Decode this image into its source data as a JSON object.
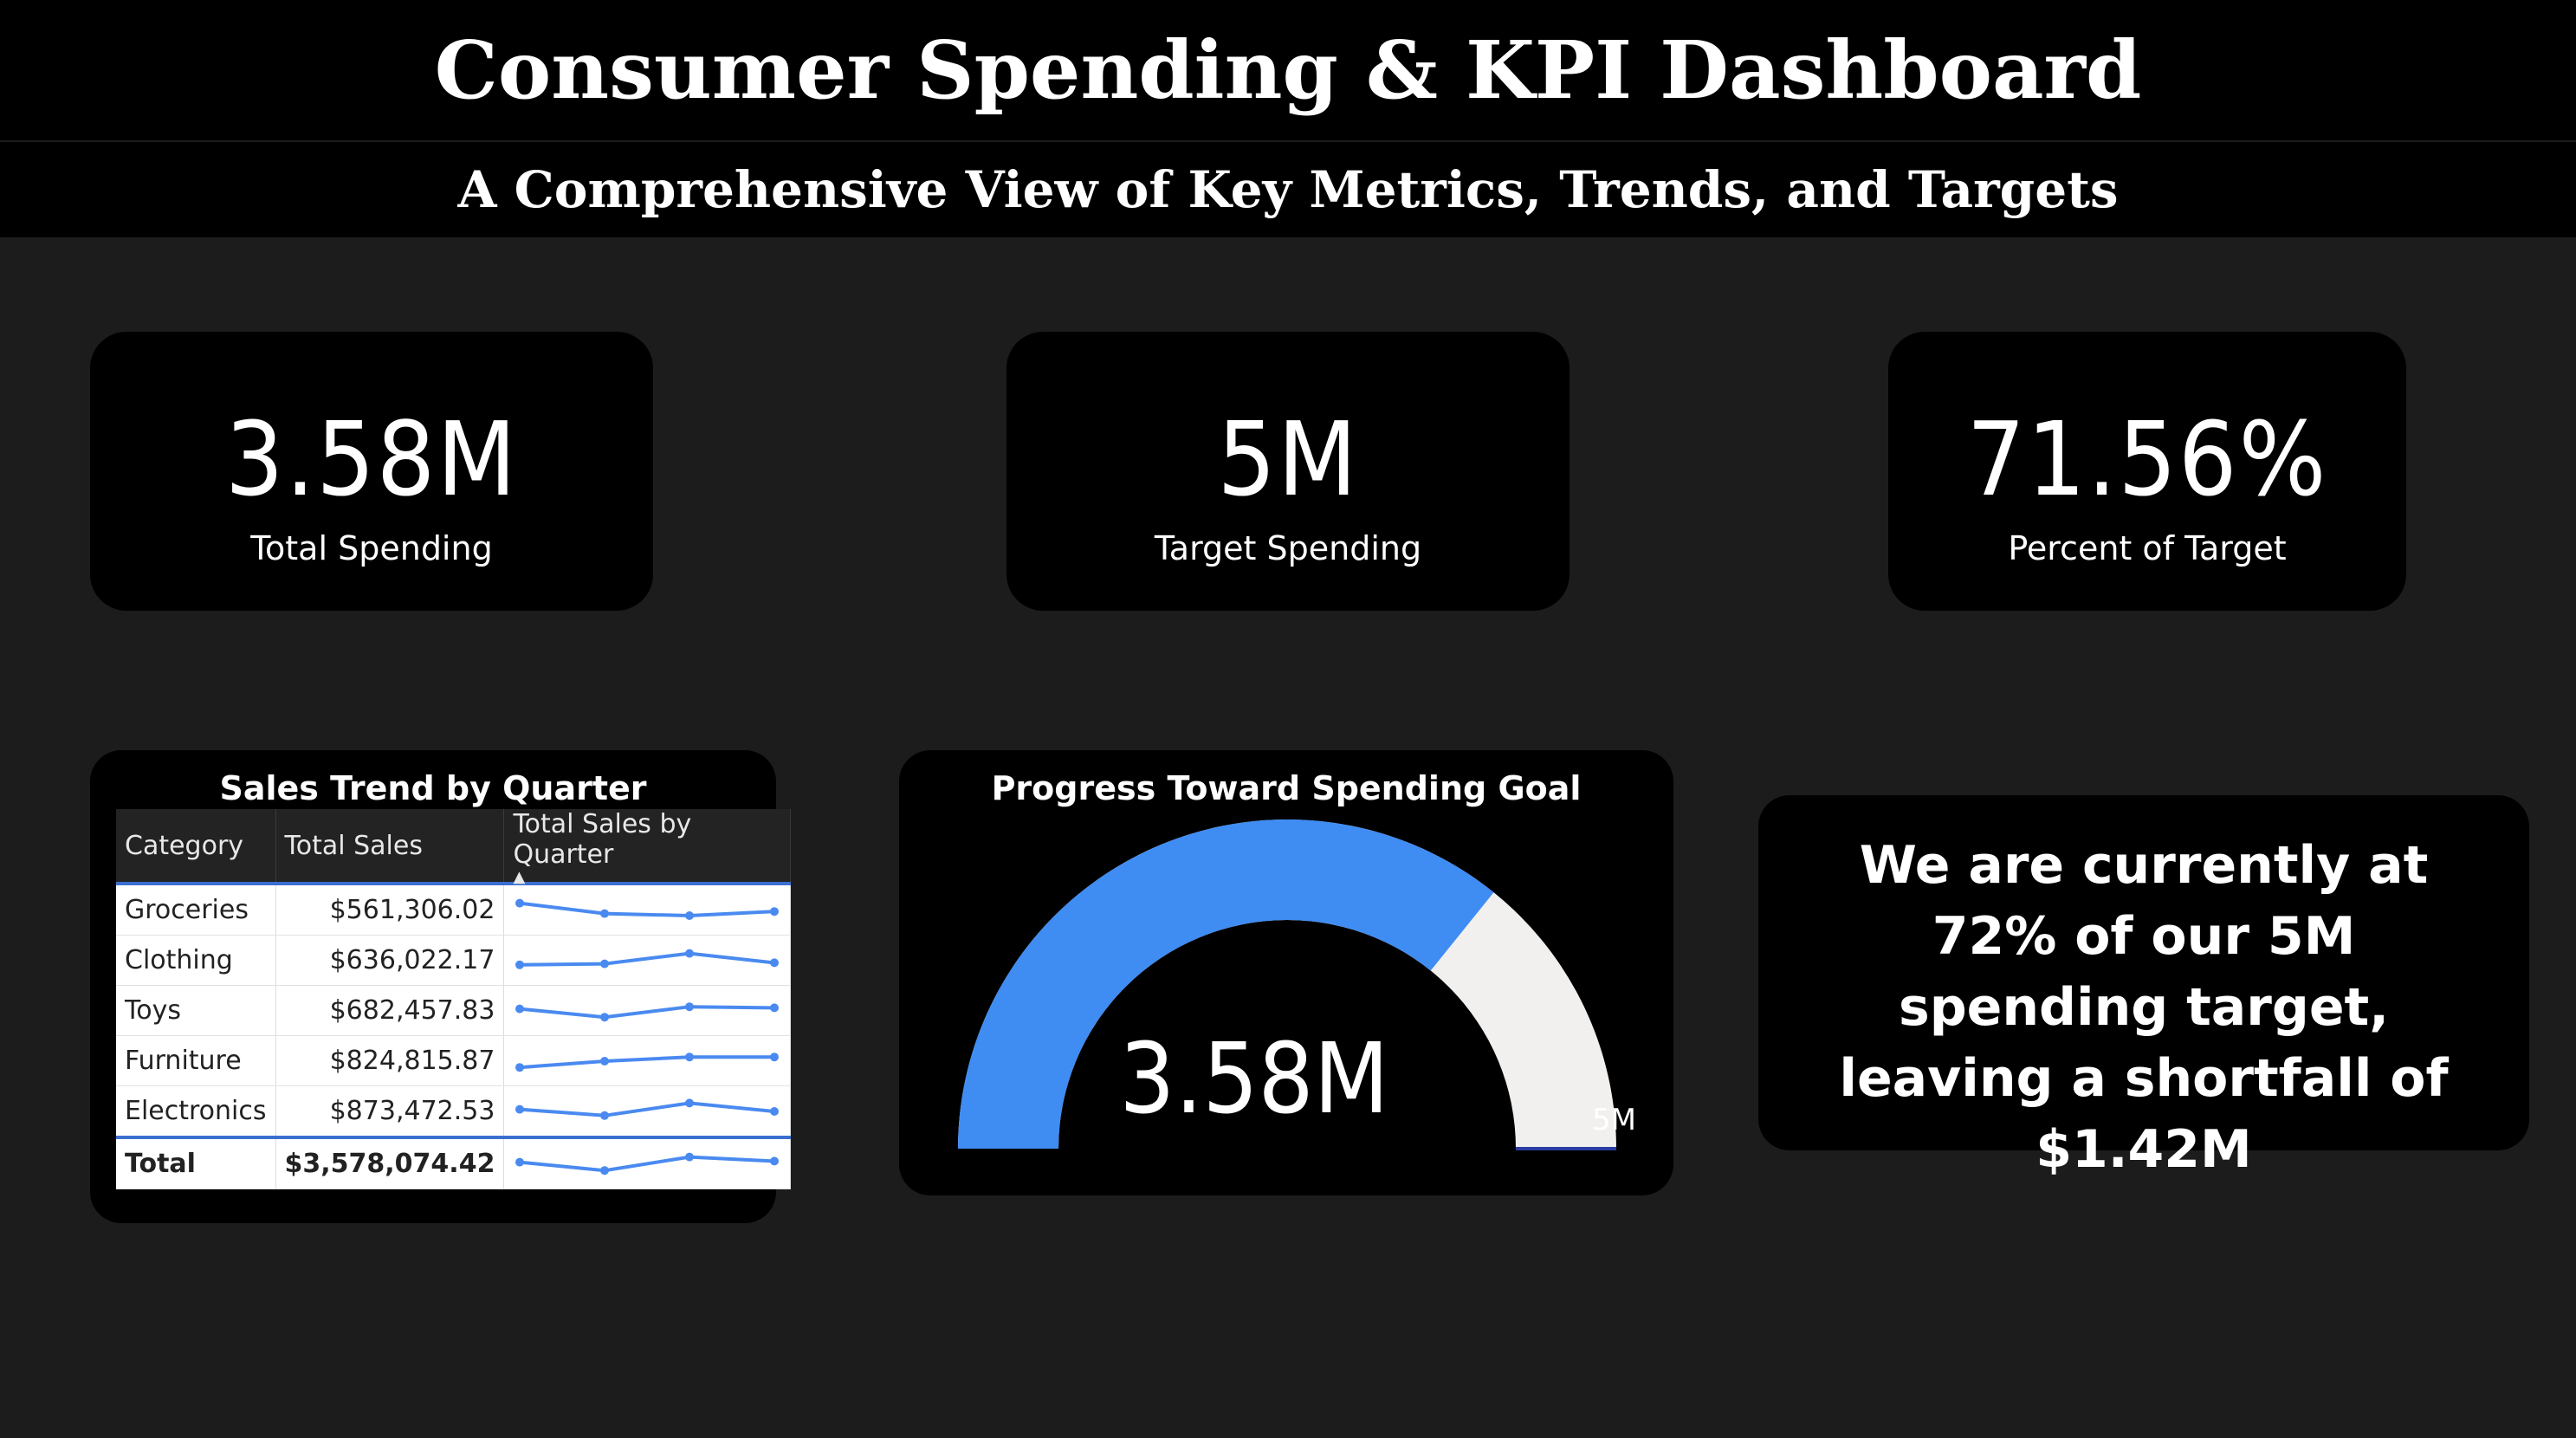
{
  "header": {
    "title": "Consumer Spending & KPI Dashboard",
    "subtitle": "A Comprehensive View of Key Metrics, Trends, and Targets"
  },
  "kpis": [
    {
      "value": "3.58M",
      "label": "Total Spending"
    },
    {
      "value": "5M",
      "label": "Target Spending"
    },
    {
      "value": "71.56%",
      "label": "Percent of Target"
    }
  ],
  "sales_table": {
    "title": "Sales Trend by Quarter",
    "columns": [
      "Category",
      "Total Sales",
      "Total Sales by Quarter"
    ],
    "rows": [
      {
        "category": "Groceries",
        "total": "$561,306.02",
        "trend": [
          0.85,
          0.35,
          0.25,
          0.45
        ]
      },
      {
        "category": "Clothing",
        "total": "$636,022.17",
        "trend": [
          0.3,
          0.35,
          0.85,
          0.4
        ]
      },
      {
        "category": "Toys",
        "total": "$682,457.83",
        "trend": [
          0.6,
          0.2,
          0.7,
          0.65
        ]
      },
      {
        "category": "Furniture",
        "total": "$824,815.87",
        "trend": [
          0.2,
          0.5,
          0.7,
          0.7
        ]
      },
      {
        "category": "Electronics",
        "total": "$873,472.53",
        "trend": [
          0.6,
          0.3,
          0.9,
          0.5
        ]
      }
    ],
    "total": {
      "label": "Total",
      "value": "$3,578,074.42",
      "trend": [
        0.6,
        0.2,
        0.85,
        0.65
      ]
    }
  },
  "gauge": {
    "title": "Progress Toward Spending Goal",
    "value": 3.58,
    "max": 5,
    "value_label": "3.58M",
    "max_label": "5M",
    "fill_color": "#3f8cf3",
    "remainder_color": "#f1f0ef"
  },
  "summary": {
    "text": "We are currently at 72% of our 5M spending target, leaving a shortfall of $1.42M"
  },
  "colors": {
    "background": "#1c1c1c",
    "card": "#000000",
    "sparkline": "#4a8af0"
  }
}
